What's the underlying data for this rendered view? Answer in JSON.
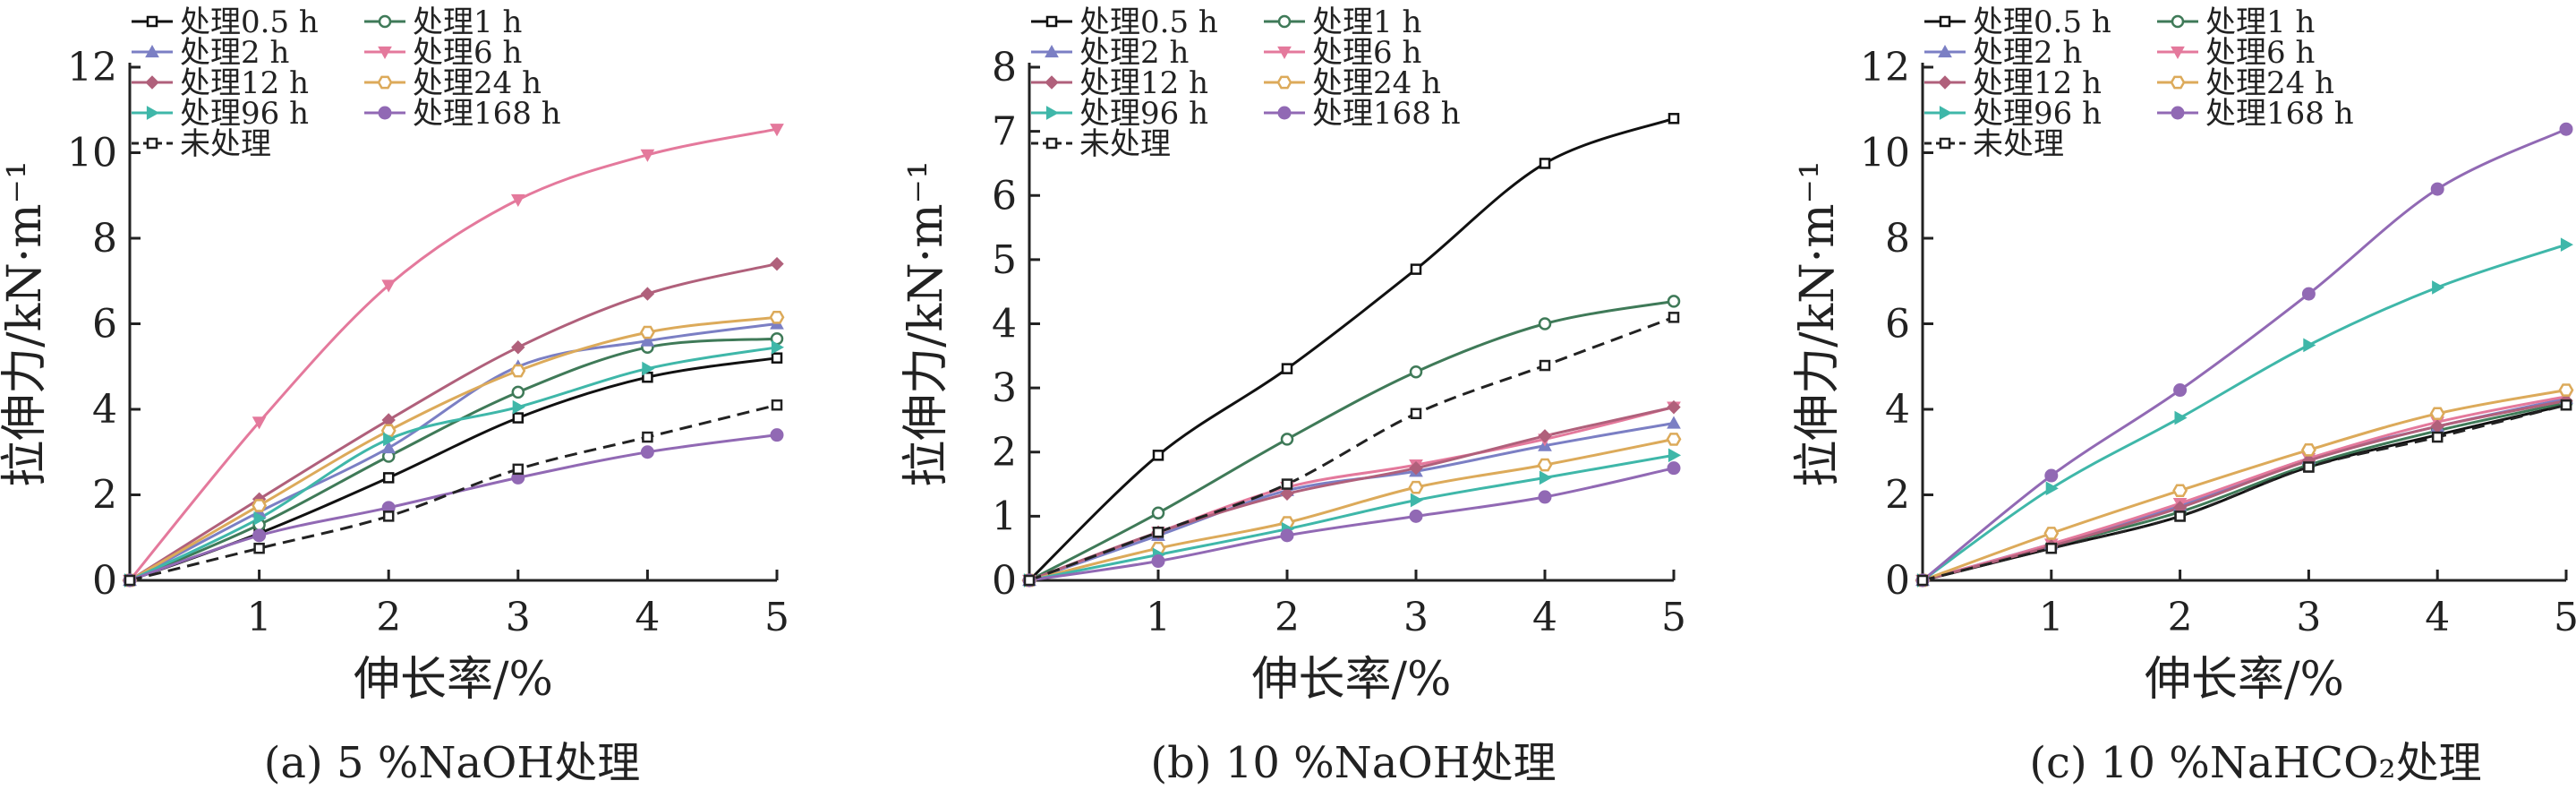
{
  "colors": {
    "axis": "#222222",
    "s05": "#111111",
    "s1": "#3f7a58",
    "s2": "#7b7fc4",
    "s6": "#e4799c",
    "s12": "#b0607b",
    "s24": "#dcaa5a",
    "s96": "#3fb7a9",
    "s168": "#9169b4",
    "untreated": "#222222"
  },
  "chart_data": [
    {
      "type": "line",
      "caption": "(a) 5 %NaOH处理",
      "xlabel": "伸长率/%",
      "ylabel": "拉伸力/kN·m⁻¹",
      "x": [
        0,
        1,
        2,
        3,
        4,
        5
      ],
      "xticks": [
        "1",
        "2",
        "3",
        "4",
        "5"
      ],
      "ylim": [
        0,
        12
      ],
      "yticks": [
        "0",
        "2",
        "4",
        "6",
        "8",
        "10",
        "12"
      ],
      "legend_position": "top-left",
      "series": [
        {
          "name": "处理0.5 h",
          "values": [
            0,
            1.1,
            2.4,
            3.8,
            4.75,
            5.2
          ]
        },
        {
          "name": "处理1 h",
          "values": [
            0,
            1.3,
            2.9,
            4.4,
            5.45,
            5.65
          ]
        },
        {
          "name": "处理2 h",
          "values": [
            0,
            1.6,
            3.1,
            5.0,
            5.6,
            6.0
          ]
        },
        {
          "name": "处理6 h",
          "values": [
            0,
            3.7,
            6.9,
            8.9,
            9.95,
            10.55
          ]
        },
        {
          "name": "处理12 h",
          "values": [
            0,
            1.9,
            3.75,
            5.45,
            6.7,
            7.4
          ]
        },
        {
          "name": "处理24 h",
          "values": [
            0,
            1.75,
            3.5,
            4.9,
            5.8,
            6.15
          ]
        },
        {
          "name": "处理96 h",
          "values": [
            0,
            1.45,
            3.3,
            4.05,
            4.95,
            5.45
          ]
        },
        {
          "name": "处理168 h",
          "values": [
            0,
            1.05,
            1.7,
            2.4,
            3.0,
            3.4
          ]
        },
        {
          "name": "未处理",
          "values": [
            0,
            0.75,
            1.5,
            2.6,
            3.35,
            4.1
          ]
        }
      ]
    },
    {
      "type": "line",
      "caption": "(b) 10 %NaOH处理",
      "xlabel": "伸长率/%",
      "ylabel": "拉伸力/kN·m⁻¹",
      "x": [
        0,
        1,
        2,
        3,
        4,
        5
      ],
      "xticks": [
        "1",
        "2",
        "3",
        "4",
        "5"
      ],
      "ylim": [
        0,
        8
      ],
      "yticks": [
        "0",
        "1",
        "2",
        "3",
        "4",
        "5",
        "6",
        "7",
        "8"
      ],
      "legend_position": "top-left",
      "series": [
        {
          "name": "处理0.5 h",
          "values": [
            0,
            1.95,
            3.3,
            4.85,
            6.5,
            7.2
          ]
        },
        {
          "name": "处理1 h",
          "values": [
            0,
            1.05,
            2.2,
            3.25,
            4.0,
            4.35
          ]
        },
        {
          "name": "处理2 h",
          "values": [
            0,
            0.7,
            1.4,
            1.7,
            2.1,
            2.45
          ]
        },
        {
          "name": "处理6 h",
          "values": [
            0,
            0.75,
            1.45,
            1.8,
            2.2,
            2.7
          ]
        },
        {
          "name": "处理12 h",
          "values": [
            0,
            0.75,
            1.35,
            1.75,
            2.25,
            2.7
          ]
        },
        {
          "name": "处理24 h",
          "values": [
            0,
            0.5,
            0.9,
            1.45,
            1.8,
            2.2
          ]
        },
        {
          "name": "处理96 h",
          "values": [
            0,
            0.4,
            0.8,
            1.25,
            1.6,
            1.95
          ]
        },
        {
          "name": "处理168 h",
          "values": [
            0,
            0.3,
            0.7,
            1.0,
            1.3,
            1.75
          ]
        },
        {
          "name": "未处理",
          "values": [
            0,
            0.75,
            1.5,
            2.6,
            3.35,
            4.1
          ]
        }
      ]
    },
    {
      "type": "line",
      "caption": "(c) 10 %NaHCO₂处理",
      "xlabel": "伸长率/%",
      "ylabel": "拉伸力/kN·m⁻¹",
      "x": [
        0,
        1,
        2,
        3,
        4,
        5
      ],
      "xticks": [
        "1",
        "2",
        "3",
        "4",
        "5"
      ],
      "ylim": [
        0,
        12
      ],
      "yticks": [
        "0",
        "2",
        "4",
        "6",
        "8",
        "10",
        "12"
      ],
      "legend_position": "top-left",
      "series": [
        {
          "name": "处理0.5 h",
          "values": [
            0,
            0.75,
            1.5,
            2.65,
            3.4,
            4.1
          ]
        },
        {
          "name": "处理1 h",
          "values": [
            0,
            0.8,
            1.6,
            2.7,
            3.5,
            4.15
          ]
        },
        {
          "name": "处理2 h",
          "values": [
            0,
            0.85,
            1.75,
            2.85,
            3.6,
            4.25
          ]
        },
        {
          "name": "处理6 h",
          "values": [
            0,
            0.85,
            1.8,
            2.85,
            3.7,
            4.3
          ]
        },
        {
          "name": "处理12 h",
          "values": [
            0,
            0.8,
            1.7,
            2.8,
            3.6,
            4.2
          ]
        },
        {
          "name": "处理24 h",
          "values": [
            0,
            1.1,
            2.1,
            3.05,
            3.9,
            4.45
          ]
        },
        {
          "name": "处理96 h",
          "values": [
            0,
            2.15,
            3.8,
            5.5,
            6.85,
            7.85
          ]
        },
        {
          "name": "处理168 h",
          "values": [
            0,
            2.45,
            4.45,
            6.7,
            9.15,
            10.55
          ]
        },
        {
          "name": "未处理",
          "values": [
            0,
            0.75,
            1.5,
            2.65,
            3.35,
            4.1
          ]
        }
      ]
    }
  ]
}
